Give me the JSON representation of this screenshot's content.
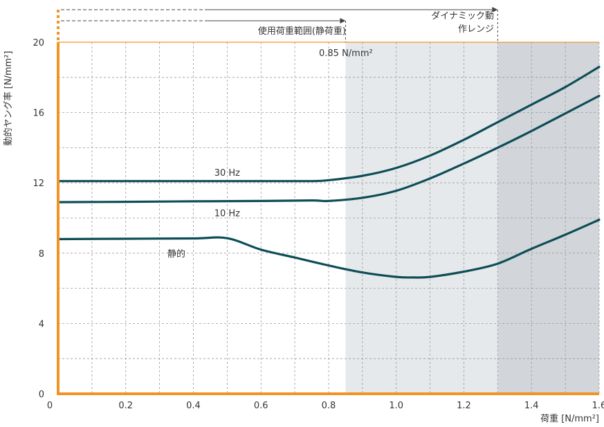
{
  "colors": {
    "axis": "#f39325",
    "curve": "#0d4d57",
    "grid": "#9a9a9a",
    "region_static": "#e6e9eb",
    "region_dynamic": "#d2d6da"
  },
  "chart_data": {
    "type": "line",
    "xlabel": "荷重 [N/mm²]",
    "ylabel": "動的ヤング率 [N/mm²]",
    "xlim": [
      0,
      1.6
    ],
    "ylim": [
      0,
      20
    ],
    "x_ticks": [
      "0",
      "0.2",
      "0.4",
      "0.6",
      "0.8",
      "1.0",
      "1.2",
      "1.4",
      "1.6"
    ],
    "y_ticks": [
      "0",
      "4",
      "8",
      "12",
      "16",
      "20"
    ],
    "regions": [
      {
        "name": "使用荷重範囲(静荷重)",
        "from": 0,
        "to": 0.85
      },
      {
        "name": "ダイナミック動作レンジ",
        "line1": "ダイナミック動",
        "line2": "作レンジ",
        "from": 0,
        "to": 1.3
      }
    ],
    "annotation": "0.85 N/mm²",
    "series": [
      {
        "name": "30 Hz",
        "x": [
          0,
          0.2,
          0.4,
          0.6,
          0.75,
          0.8,
          0.9,
          1.0,
          1.1,
          1.2,
          1.3,
          1.4,
          1.5,
          1.6
        ],
        "y": [
          12.1,
          12.1,
          12.1,
          12.1,
          12.1,
          12.15,
          12.4,
          12.85,
          13.55,
          14.45,
          15.45,
          16.45,
          17.45,
          18.6
        ]
      },
      {
        "name": "10 Hz",
        "x": [
          0,
          0.2,
          0.4,
          0.6,
          0.75,
          0.8,
          0.9,
          1.0,
          1.1,
          1.2,
          1.3,
          1.4,
          1.5,
          1.6
        ],
        "y": [
          10.9,
          10.92,
          10.95,
          10.97,
          11.0,
          10.97,
          11.15,
          11.55,
          12.25,
          13.1,
          14.0,
          14.95,
          15.95,
          16.95
        ]
      },
      {
        "name": "静的",
        "x": [
          0,
          0.2,
          0.4,
          0.5,
          0.6,
          0.7,
          0.8,
          0.9,
          1.0,
          1.05,
          1.1,
          1.2,
          1.3,
          1.4,
          1.5,
          1.6
        ],
        "y": [
          8.8,
          8.82,
          8.84,
          8.85,
          8.2,
          7.75,
          7.3,
          6.9,
          6.65,
          6.62,
          6.65,
          6.95,
          7.4,
          8.25,
          9.05,
          9.9
        ]
      }
    ],
    "series_labels": [
      {
        "text": "30 Hz",
        "x": 0.5,
        "y": 12.4
      },
      {
        "text": "10 Hz",
        "x": 0.5,
        "y": 10.1
      },
      {
        "text": "静的",
        "x": 0.35,
        "y": 7.8
      }
    ],
    "grid": true
  }
}
